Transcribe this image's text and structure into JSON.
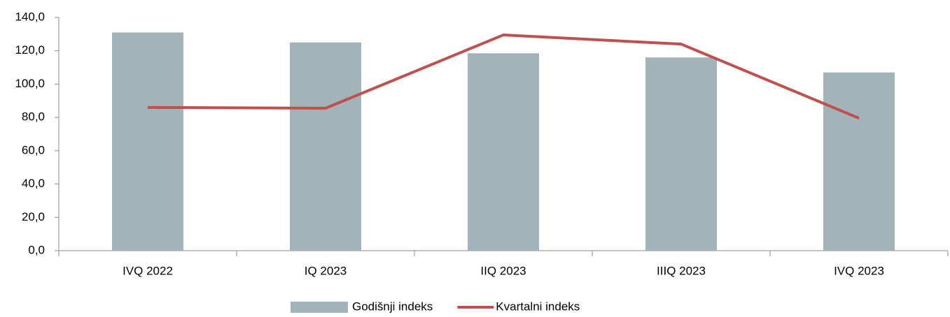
{
  "chart_data": {
    "type": "bar",
    "categories": [
      "IVQ 2022",
      "IQ 2023",
      "IIQ 2023",
      "IIIQ 2023",
      "IVQ 2023"
    ],
    "series": [
      {
        "name": "Godišnji indeks",
        "type": "bar",
        "color": "#a2b3b9",
        "values": [
          131,
          125,
          118.5,
          116,
          107
        ]
      },
      {
        "name": "Kvartalni indeks",
        "type": "line",
        "color": "#c0504d",
        "values": [
          86,
          85.5,
          129.5,
          124,
          79.5
        ]
      }
    ],
    "ylim": [
      0,
      140
    ],
    "yticks": [
      {
        "value": 0,
        "label": "0,0"
      },
      {
        "value": 20,
        "label": "20,0"
      },
      {
        "value": 40,
        "label": "40,0"
      },
      {
        "value": 60,
        "label": "60,0"
      },
      {
        "value": 80,
        "label": "80,0"
      },
      {
        "value": 100,
        "label": "100,0"
      },
      {
        "value": 120,
        "label": "120,0"
      },
      {
        "value": 140,
        "label": "140,0"
      }
    ],
    "grid": false,
    "legend": "bottom"
  }
}
